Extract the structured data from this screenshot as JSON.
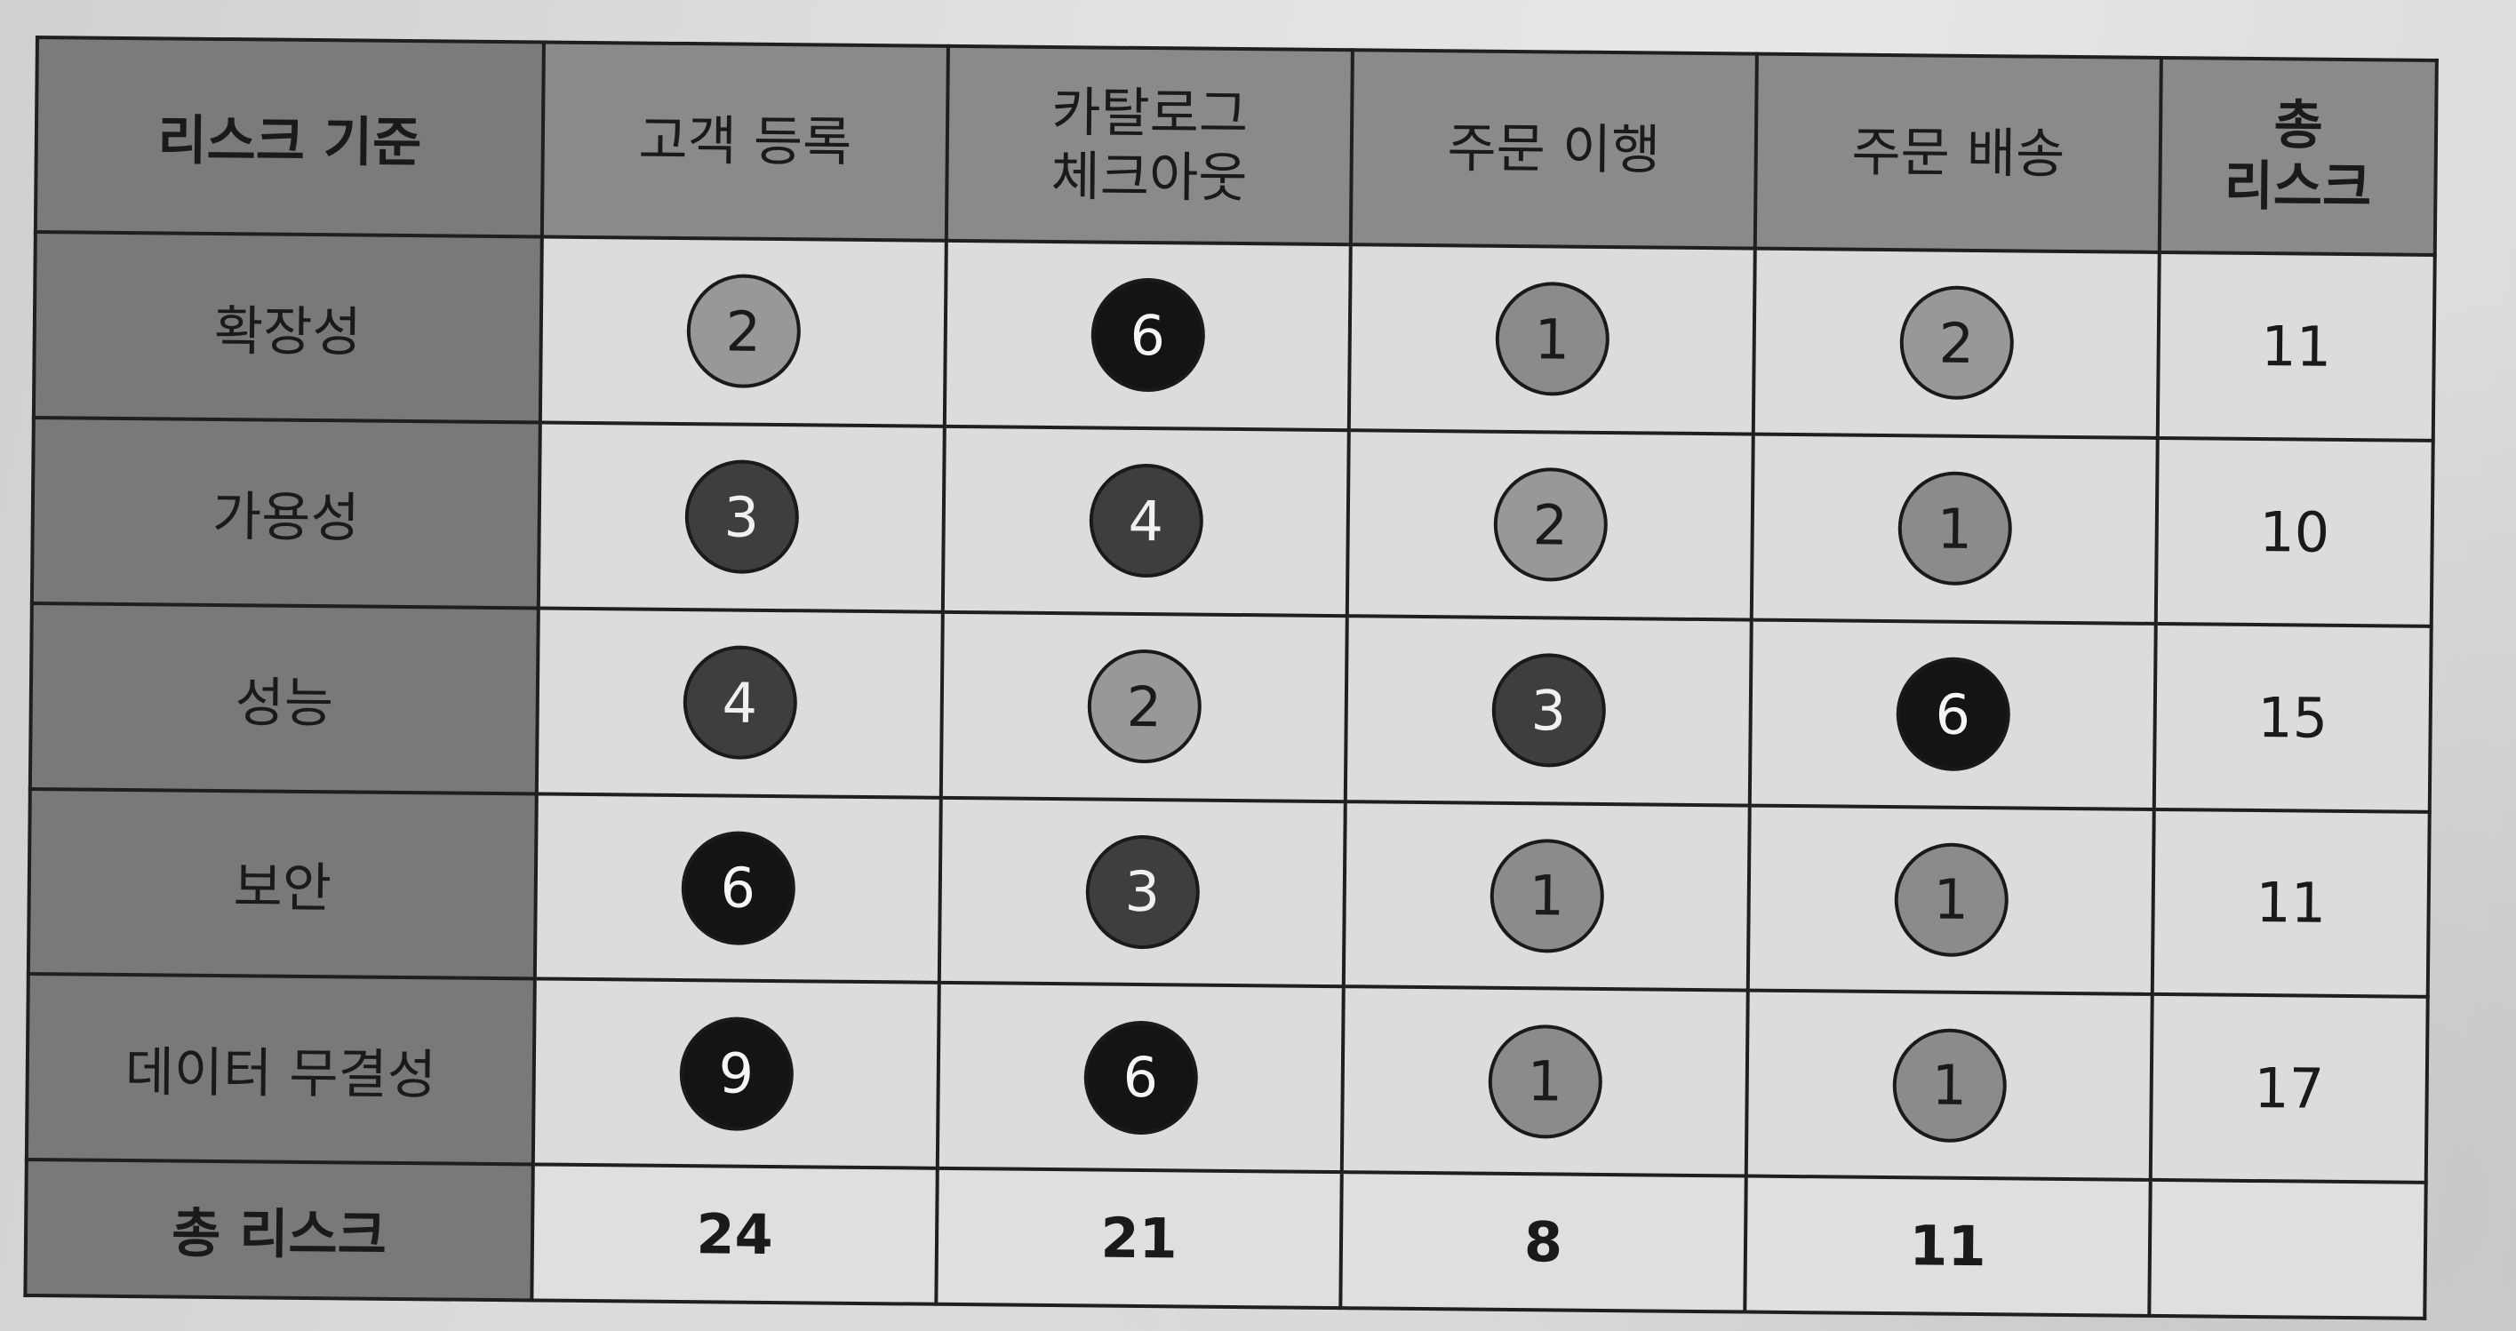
{
  "table": {
    "corner_header": "리스크 기준",
    "total_header_line1": "총",
    "total_header_line2": "리스크",
    "columns": [
      {
        "line1": "고객 등록",
        "line2": ""
      },
      {
        "line1": "카탈로그",
        "line2": "체크아웃"
      },
      {
        "line1": "주문 이행",
        "line2": ""
      },
      {
        "line1": "주문 배송",
        "line2": ""
      }
    ],
    "rows": [
      {
        "label": "확장성",
        "values": [
          "2",
          "6",
          "1",
          "2"
        ],
        "total": "11"
      },
      {
        "label": "가용성",
        "values": [
          "3",
          "4",
          "2",
          "1"
        ],
        "total": "10"
      },
      {
        "label": "성능",
        "values": [
          "4",
          "2",
          "3",
          "6"
        ],
        "total": "15"
      },
      {
        "label": "보안",
        "values": [
          "6",
          "3",
          "1",
          "1"
        ],
        "total": "11"
      },
      {
        "label": "데이터 무결성",
        "values": [
          "9",
          "6",
          "1",
          "1"
        ],
        "total": "17"
      }
    ],
    "total_row": {
      "label": "총 리스크",
      "values": [
        "24",
        "21",
        "8",
        "11"
      ],
      "grand_total": ""
    }
  },
  "colors": {
    "header_bg": "#8c8a88",
    "row_label_bg": "#7b7977",
    "cell_bg": "#dedcda",
    "circle_low": "#8d8b89",
    "circle_medium": "#3f3e3d",
    "circle_high": "#141414"
  }
}
